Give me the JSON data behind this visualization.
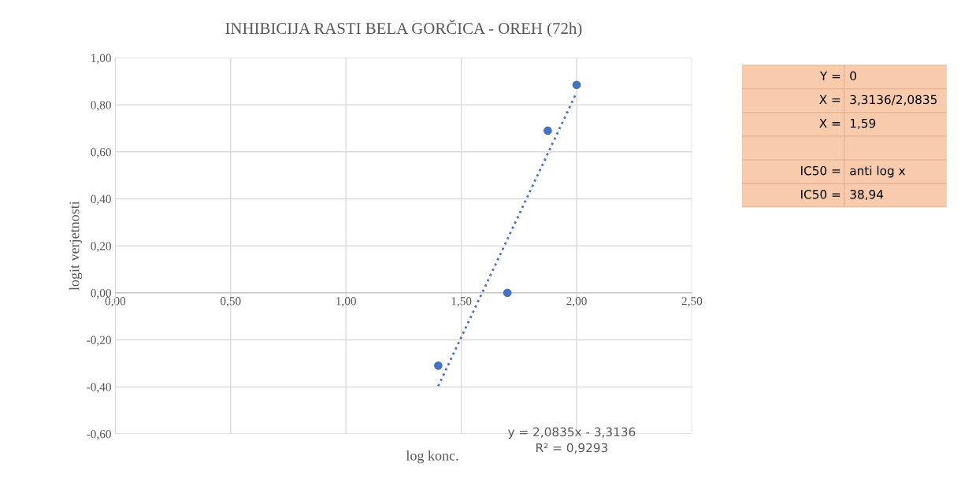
{
  "chart_data": [
    {
      "type": "scatter",
      "title": "INHIBICIJA RASTI BELA GORČICA - OREH (72h)",
      "xlabel": "log konc.",
      "ylabel": "logit verjetnosti",
      "x": [
        1.4,
        1.7,
        1.875,
        2.0
      ],
      "series": [
        {
          "type": "scatter",
          "color": "#4472c4",
          "marker": "circle",
          "values": [
            -0.31,
            0.0,
            0.69,
            0.885
          ]
        },
        {
          "type": "line",
          "color": "#4472c4",
          "line_style": "dotted",
          "marker": "none",
          "x": [
            1.4,
            2.0
          ],
          "values": [
            -0.397,
            0.853
          ]
        }
      ],
      "xlim": [
        0,
        2.5
      ],
      "ylim": [
        -0.6,
        1.0
      ],
      "xticks": [
        {
          "value": 0,
          "label": "0,00"
        },
        {
          "value": 0.5,
          "label": "0,50"
        },
        {
          "value": 1,
          "label": "1,00"
        },
        {
          "value": 1.5,
          "label": "1,50"
        },
        {
          "value": 2,
          "label": "2,00"
        },
        {
          "value": 2.5,
          "label": "2,50"
        }
      ],
      "yticks": [
        {
          "value": -0.6,
          "label": "-0,60"
        },
        {
          "value": -0.4,
          "label": "-0,40"
        },
        {
          "value": -0.2,
          "label": "-0,20"
        },
        {
          "value": 0,
          "label": "0,00"
        },
        {
          "value": 0.2,
          "label": "0,20"
        },
        {
          "value": 0.4,
          "label": "0,40"
        },
        {
          "value": 0.6,
          "label": "0,60"
        },
        {
          "value": 0.8,
          "label": "0,80"
        },
        {
          "value": 1.0,
          "label": "1,00"
        }
      ],
      "grid": true,
      "legend": false,
      "annotations": [
        "y = 2,0835x - 3,3136",
        "R² = 0,9293"
      ]
    },
    {
      "type": "other",
      "annotations": [
        "Y =",
        "0",
        "X =",
        "3,3136/2,0835",
        "X =",
        "1,59",
        "IC50 =",
        "anti log x",
        "IC50 =",
        "38,94"
      ]
    }
  ]
}
